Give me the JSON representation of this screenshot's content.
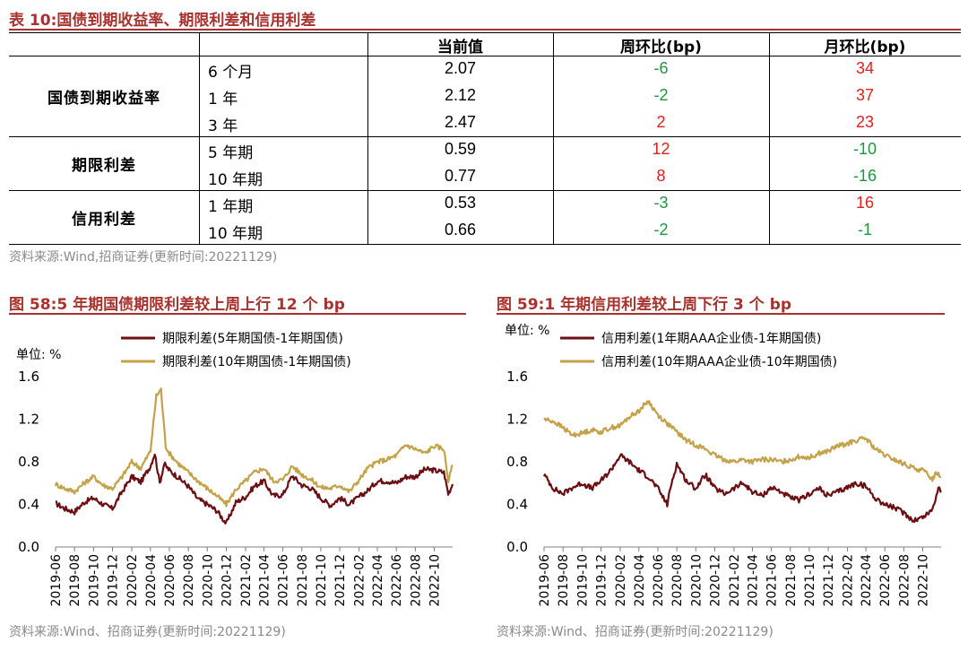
{
  "table": {
    "caption": "表 10:国债到期收益率、期限利差和信用利差",
    "headers": [
      "",
      "",
      "当前值",
      "周环比(bp)",
      "月环比(bp)"
    ],
    "groups": [
      {
        "name": "国债到期收益率",
        "rows": [
          {
            "term": "6 个月",
            "value": "2.07",
            "wow": "-6",
            "mom": "34"
          },
          {
            "term": "1 年",
            "value": "2.12",
            "wow": "-2",
            "mom": "37"
          },
          {
            "term": "3 年",
            "value": "2.47",
            "wow": "2",
            "mom": "23"
          }
        ]
      },
      {
        "name": "期限利差",
        "rows": [
          {
            "term": "5 年期",
            "value": "0.59",
            "wow": "12",
            "mom": "-10"
          },
          {
            "term": "10 年期",
            "value": "0.77",
            "wow": "8",
            "mom": "-16"
          }
        ]
      },
      {
        "name": "信用利差",
        "rows": [
          {
            "term": "1 年期",
            "value": "0.53",
            "wow": "-3",
            "mom": "16"
          },
          {
            "term": "10 年期",
            "value": "0.66",
            "wow": "-2",
            "mom": "-1"
          }
        ]
      }
    ],
    "source": "资料来源:Wind,招商证券(更新时间:20221129)"
  },
  "colors": {
    "positive": "#e0201e",
    "negative": "#1a9a3a",
    "caption": "#a8322d",
    "series_dark": "#6b0f12",
    "series_gold": "#c4a24a"
  },
  "chart_data": [
    {
      "type": "line",
      "caption": "图 58:5 年期国债期限利差较上周上行 12 个 bp",
      "unit_label": "单位: %",
      "ylim": [
        0.0,
        1.6
      ],
      "yticks": [
        "0.0",
        "0.4",
        "0.8",
        "1.2",
        "1.6"
      ],
      "xticks": [
        "2019-06",
        "2019-08",
        "2019-10",
        "2019-12",
        "2020-02",
        "2020-04",
        "2020-06",
        "2020-08",
        "2020-10",
        "2020-12",
        "2021-02",
        "2021-04",
        "2021-06",
        "2021-08",
        "2021-10",
        "2021-12",
        "2022-02",
        "2022-04",
        "2022-06",
        "2022-08",
        "2022-10"
      ],
      "grid": false,
      "legend_position": "top",
      "x_start": "2019-06-01",
      "x_end": "2022-11-29",
      "series": [
        {
          "name": "期限利差(5年期国债-1年期国债)",
          "color": "#6b0f12",
          "points": [
            [
              "2019-06-01",
              0.41
            ],
            [
              "2019-07-01",
              0.36
            ],
            [
              "2019-08-01",
              0.33
            ],
            [
              "2019-09-01",
              0.42
            ],
            [
              "2019-10-01",
              0.46
            ],
            [
              "2019-11-01",
              0.4
            ],
            [
              "2019-12-01",
              0.36
            ],
            [
              "2020-01-01",
              0.52
            ],
            [
              "2020-02-01",
              0.66
            ],
            [
              "2020-03-01",
              0.61
            ],
            [
              "2020-04-01",
              0.76
            ],
            [
              "2020-04-15",
              0.88
            ],
            [
              "2020-05-01",
              0.6
            ],
            [
              "2020-05-15",
              0.78
            ],
            [
              "2020-06-01",
              0.72
            ],
            [
              "2020-07-01",
              0.65
            ],
            [
              "2020-08-01",
              0.57
            ],
            [
              "2020-09-01",
              0.45
            ],
            [
              "2020-10-01",
              0.4
            ],
            [
              "2020-11-01",
              0.34
            ],
            [
              "2020-12-01",
              0.22
            ],
            [
              "2021-01-01",
              0.42
            ],
            [
              "2021-02-01",
              0.47
            ],
            [
              "2021-03-01",
              0.57
            ],
            [
              "2021-04-01",
              0.62
            ],
            [
              "2021-05-01",
              0.48
            ],
            [
              "2021-06-01",
              0.49
            ],
            [
              "2021-07-01",
              0.67
            ],
            [
              "2021-08-01",
              0.58
            ],
            [
              "2021-09-01",
              0.55
            ],
            [
              "2021-10-01",
              0.46
            ],
            [
              "2021-11-01",
              0.39
            ],
            [
              "2021-12-01",
              0.46
            ],
            [
              "2022-01-01",
              0.4
            ],
            [
              "2022-02-01",
              0.47
            ],
            [
              "2022-03-01",
              0.53
            ],
            [
              "2022-04-01",
              0.62
            ],
            [
              "2022-05-01",
              0.62
            ],
            [
              "2022-06-01",
              0.6
            ],
            [
              "2022-07-01",
              0.66
            ],
            [
              "2022-08-01",
              0.66
            ],
            [
              "2022-09-01",
              0.73
            ],
            [
              "2022-10-01",
              0.72
            ],
            [
              "2022-11-01",
              0.7
            ],
            [
              "2022-11-15",
              0.5
            ],
            [
              "2022-11-29",
              0.59
            ]
          ]
        },
        {
          "name": "期限利差(10年期国债-1年期国债)",
          "color": "#c4a24a",
          "points": [
            [
              "2019-06-01",
              0.59
            ],
            [
              "2019-07-01",
              0.55
            ],
            [
              "2019-08-01",
              0.52
            ],
            [
              "2019-09-01",
              0.6
            ],
            [
              "2019-10-01",
              0.66
            ],
            [
              "2019-11-01",
              0.58
            ],
            [
              "2019-12-01",
              0.55
            ],
            [
              "2020-01-01",
              0.66
            ],
            [
              "2020-02-01",
              0.8
            ],
            [
              "2020-03-01",
              0.74
            ],
            [
              "2020-04-01",
              0.9
            ],
            [
              "2020-04-20",
              1.42
            ],
            [
              "2020-05-05",
              1.48
            ],
            [
              "2020-05-20",
              0.95
            ],
            [
              "2020-06-01",
              0.88
            ],
            [
              "2020-07-01",
              0.78
            ],
            [
              "2020-08-01",
              0.7
            ],
            [
              "2020-09-01",
              0.62
            ],
            [
              "2020-10-01",
              0.55
            ],
            [
              "2020-11-01",
              0.48
            ],
            [
              "2020-12-01",
              0.4
            ],
            [
              "2021-01-01",
              0.54
            ],
            [
              "2021-02-01",
              0.62
            ],
            [
              "2021-03-01",
              0.7
            ],
            [
              "2021-04-01",
              0.74
            ],
            [
              "2021-05-01",
              0.62
            ],
            [
              "2021-06-01",
              0.63
            ],
            [
              "2021-07-01",
              0.76
            ],
            [
              "2021-08-01",
              0.68
            ],
            [
              "2021-09-01",
              0.63
            ],
            [
              "2021-10-01",
              0.56
            ],
            [
              "2021-11-01",
              0.55
            ],
            [
              "2021-12-01",
              0.58
            ],
            [
              "2022-01-01",
              0.52
            ],
            [
              "2022-02-01",
              0.63
            ],
            [
              "2022-03-01",
              0.74
            ],
            [
              "2022-04-01",
              0.8
            ],
            [
              "2022-05-01",
              0.82
            ],
            [
              "2022-06-01",
              0.86
            ],
            [
              "2022-07-01",
              0.96
            ],
            [
              "2022-08-01",
              0.92
            ],
            [
              "2022-09-01",
              0.88
            ],
            [
              "2022-10-01",
              0.95
            ],
            [
              "2022-11-01",
              0.92
            ],
            [
              "2022-11-15",
              0.62
            ],
            [
              "2022-11-29",
              0.77
            ]
          ]
        }
      ],
      "source": "资料来源:Wind、招商证券(更新时间:20221129)"
    },
    {
      "type": "line",
      "caption": "图 59:1 年期信用利差较上周下行 3 个 bp",
      "unit_label": "单位: %",
      "ylim": [
        0.0,
        1.6
      ],
      "yticks": [
        "0.0",
        "0.4",
        "0.8",
        "1.2",
        "1.6"
      ],
      "xticks": [
        "2019-06",
        "2019-08",
        "2019-10",
        "2019-12",
        "2020-02",
        "2020-04",
        "2020-06",
        "2020-08",
        "2020-10",
        "2020-12",
        "2021-02",
        "2021-04",
        "2021-06",
        "2021-08",
        "2021-10",
        "2021-12",
        "2022-02",
        "2022-04",
        "2022-06",
        "2022-08",
        "2022-10"
      ],
      "grid": false,
      "legend_position": "top",
      "x_start": "2019-06-01",
      "x_end": "2022-11-29",
      "series": [
        {
          "name": "信用利差(1年期AAA企业债-1年期国债)",
          "color": "#6b0f12",
          "points": [
            [
              "2019-06-01",
              0.68
            ],
            [
              "2019-07-01",
              0.55
            ],
            [
              "2019-08-01",
              0.5
            ],
            [
              "2019-09-01",
              0.56
            ],
            [
              "2019-10-01",
              0.6
            ],
            [
              "2019-11-01",
              0.55
            ],
            [
              "2019-12-01",
              0.62
            ],
            [
              "2020-01-01",
              0.72
            ],
            [
              "2020-02-01",
              0.86
            ],
            [
              "2020-03-01",
              0.8
            ],
            [
              "2020-04-01",
              0.72
            ],
            [
              "2020-05-01",
              0.66
            ],
            [
              "2020-06-01",
              0.55
            ],
            [
              "2020-07-01",
              0.4
            ],
            [
              "2020-07-15",
              0.6
            ],
            [
              "2020-08-01",
              0.78
            ],
            [
              "2020-09-01",
              0.62
            ],
            [
              "2020-10-01",
              0.55
            ],
            [
              "2020-11-01",
              0.68
            ],
            [
              "2020-12-01",
              0.55
            ],
            [
              "2021-01-01",
              0.5
            ],
            [
              "2021-02-01",
              0.55
            ],
            [
              "2021-03-01",
              0.6
            ],
            [
              "2021-04-01",
              0.52
            ],
            [
              "2021-05-01",
              0.48
            ],
            [
              "2021-06-01",
              0.56
            ],
            [
              "2021-07-01",
              0.52
            ],
            [
              "2021-08-01",
              0.46
            ],
            [
              "2021-09-01",
              0.44
            ],
            [
              "2021-10-01",
              0.5
            ],
            [
              "2021-11-01",
              0.55
            ],
            [
              "2021-12-01",
              0.48
            ],
            [
              "2022-01-01",
              0.52
            ],
            [
              "2022-02-01",
              0.56
            ],
            [
              "2022-03-01",
              0.6
            ],
            [
              "2022-04-01",
              0.57
            ],
            [
              "2022-05-01",
              0.46
            ],
            [
              "2022-06-01",
              0.4
            ],
            [
              "2022-07-01",
              0.37
            ],
            [
              "2022-08-01",
              0.32
            ],
            [
              "2022-09-01",
              0.25
            ],
            [
              "2022-10-01",
              0.28
            ],
            [
              "2022-11-01",
              0.35
            ],
            [
              "2022-11-20",
              0.56
            ],
            [
              "2022-11-29",
              0.53
            ]
          ]
        },
        {
          "name": "信用利差(10年期AAA企业债-10年期国债)",
          "color": "#c4a24a",
          "points": [
            [
              "2019-06-01",
              1.2
            ],
            [
              "2019-07-01",
              1.18
            ],
            [
              "2019-08-01",
              1.12
            ],
            [
              "2019-09-01",
              1.05
            ],
            [
              "2019-10-01",
              1.07
            ],
            [
              "2019-11-01",
              1.1
            ],
            [
              "2019-12-01",
              1.08
            ],
            [
              "2020-01-01",
              1.12
            ],
            [
              "2020-02-01",
              1.14
            ],
            [
              "2020-03-01",
              1.22
            ],
            [
              "2020-04-01",
              1.28
            ],
            [
              "2020-05-01",
              1.37
            ],
            [
              "2020-06-01",
              1.24
            ],
            [
              "2020-07-01",
              1.16
            ],
            [
              "2020-08-01",
              1.08
            ],
            [
              "2020-09-01",
              1.0
            ],
            [
              "2020-10-01",
              0.96
            ],
            [
              "2020-11-01",
              0.92
            ],
            [
              "2020-12-01",
              0.86
            ],
            [
              "2021-01-01",
              0.82
            ],
            [
              "2021-02-01",
              0.8
            ],
            [
              "2021-03-01",
              0.82
            ],
            [
              "2021-04-01",
              0.8
            ],
            [
              "2021-05-01",
              0.82
            ],
            [
              "2021-06-01",
              0.82
            ],
            [
              "2021-07-01",
              0.8
            ],
            [
              "2021-08-01",
              0.82
            ],
            [
              "2021-09-01",
              0.85
            ],
            [
              "2021-10-01",
              0.84
            ],
            [
              "2021-11-01",
              0.88
            ],
            [
              "2021-12-01",
              0.9
            ],
            [
              "2022-01-01",
              0.95
            ],
            [
              "2022-02-01",
              0.97
            ],
            [
              "2022-03-01",
              1.0
            ],
            [
              "2022-04-01",
              1.02
            ],
            [
              "2022-05-01",
              0.92
            ],
            [
              "2022-06-01",
              0.86
            ],
            [
              "2022-07-01",
              0.82
            ],
            [
              "2022-08-01",
              0.78
            ],
            [
              "2022-09-01",
              0.74
            ],
            [
              "2022-10-01",
              0.72
            ],
            [
              "2022-11-01",
              0.64
            ],
            [
              "2022-11-15",
              0.7
            ],
            [
              "2022-11-29",
              0.66
            ]
          ]
        }
      ],
      "source": "资料来源:Wind、招商证券(更新时间:20221129)"
    }
  ]
}
